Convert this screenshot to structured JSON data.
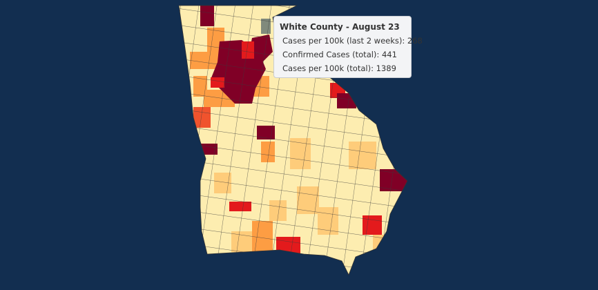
{
  "tooltip": {
    "title": "White County - August 23",
    "lines": [
      "Cases per 100k (last 2 weeks): 268",
      "Confirmed Cases (total): 441",
      "Cases per 100k (total): 1389"
    ]
  }
}
